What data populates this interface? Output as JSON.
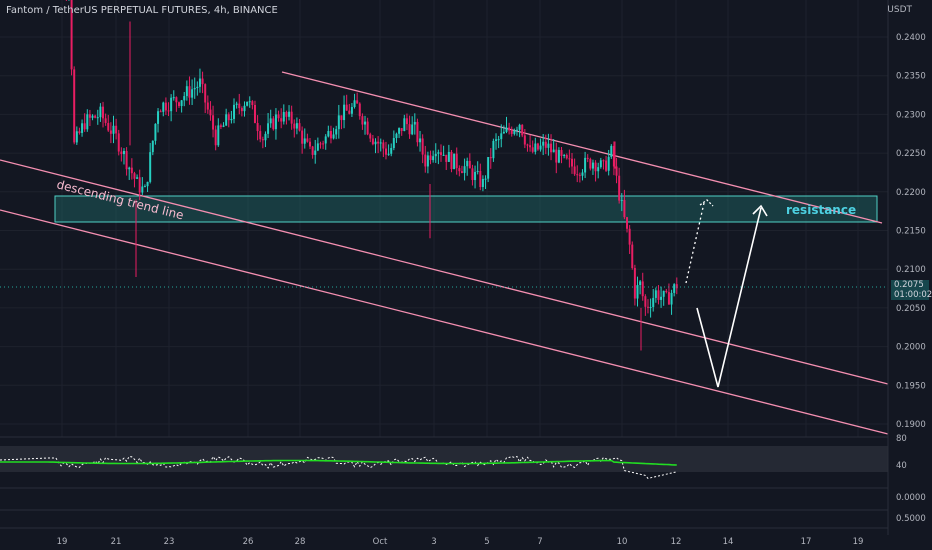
{
  "header": {
    "title": "Fantom / TetherUS PERPETUAL FUTURES, 4h, BINANCE",
    "currency": "USDT"
  },
  "price_tag": {
    "price": "0.2075",
    "countdown": "01:00:02"
  },
  "annotations": {
    "descending_trend_line": "descending trend line",
    "resistance": "resistance"
  },
  "colors": {
    "background": "#131722",
    "up": "#26d0c2",
    "down": "#e91e63",
    "channel": "#f48fb1",
    "zone": "#26a69a",
    "rsi": "#22dd22"
  },
  "chart_data": {
    "type": "candlestick",
    "price_axis": {
      "ticks": [
        "0.2400",
        "0.2350",
        "0.2300",
        "0.2250",
        "0.2200",
        "0.2150",
        "0.2100",
        "0.2050",
        "0.2000",
        "0.1950",
        "0.1900"
      ],
      "ylim": [
        0.187,
        0.245
      ]
    },
    "x_ticks": [
      "19",
      "21",
      "23",
      "26",
      "28",
      "Oct",
      "3",
      "5",
      "7",
      "10",
      "12",
      "14",
      "17",
      "19"
    ],
    "current_price": 0.2075,
    "resistance_zone": [
      0.216,
      0.2193
    ],
    "rsi_axis_ticks": [
      "80",
      "40"
    ],
    "lower_pane_ticks": [
      "0.0000",
      "0.5000"
    ]
  }
}
